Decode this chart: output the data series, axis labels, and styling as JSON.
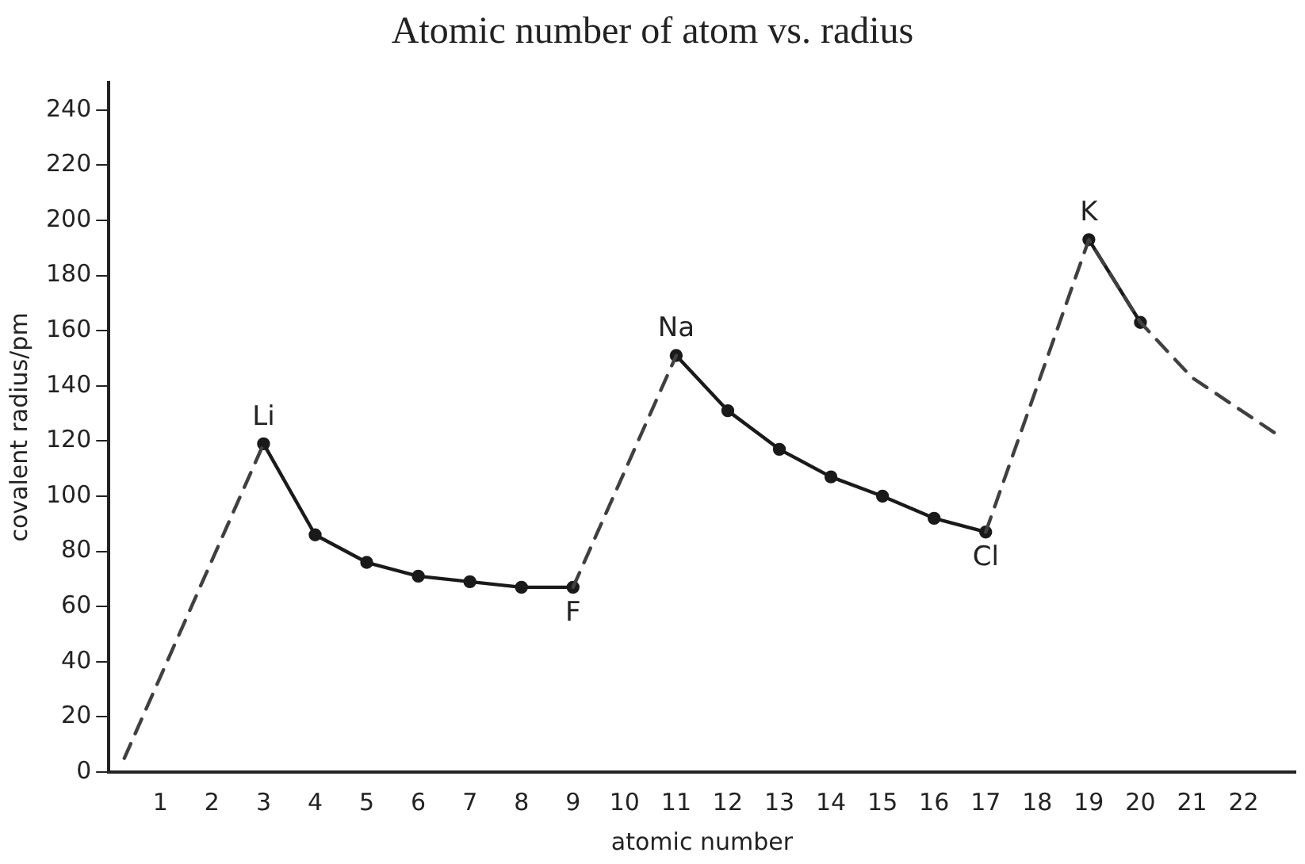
{
  "chart_data": {
    "type": "line",
    "title": "Atomic number of atom vs. radius",
    "xlabel": "atomic number",
    "ylabel": "covalent radius/pm",
    "xlim": [
      0,
      23
    ],
    "xticks": [
      1,
      2,
      3,
      4,
      5,
      6,
      7,
      8,
      9,
      10,
      11,
      12,
      13,
      14,
      15,
      16,
      17,
      18,
      19,
      20,
      21,
      22
    ],
    "ylim": [
      0,
      250
    ],
    "yticks": [
      0,
      20,
      40,
      60,
      80,
      100,
      120,
      140,
      160,
      180,
      200,
      220,
      240
    ],
    "grid": false,
    "legend": false,
    "series": [
      {
        "color": "#1a1a1a",
        "marker": "circle",
        "line_style": "solid",
        "x": [
          3,
          4,
          5,
          6,
          7,
          8,
          9,
          10,
          11,
          12,
          13,
          14,
          15,
          16,
          17,
          18,
          19,
          20
        ],
        "values": [
          119,
          86,
          76,
          71,
          69,
          67,
          67,
          null,
          151,
          131,
          117,
          107,
          100,
          92,
          87,
          null,
          193,
          163
        ]
      },
      {
        "color": "#404040",
        "marker": "none",
        "line_style": "dashed",
        "x": [
          0.3,
          3,
          6,
          9,
          11,
          14,
          17,
          19,
          20,
          21,
          22.6
        ],
        "values": [
          5,
          119,
          null,
          67,
          151,
          null,
          87,
          193,
          163,
          143,
          123
        ]
      }
    ],
    "annotations": [
      {
        "text": "Li",
        "x": 3,
        "y": 119
      },
      {
        "text": "F",
        "x": 9,
        "y": 67
      },
      {
        "text": "Na",
        "x": 11,
        "y": 151
      },
      {
        "text": "Cl",
        "x": 17,
        "y": 87
      },
      {
        "text": "K",
        "x": 19,
        "y": 193
      }
    ]
  }
}
